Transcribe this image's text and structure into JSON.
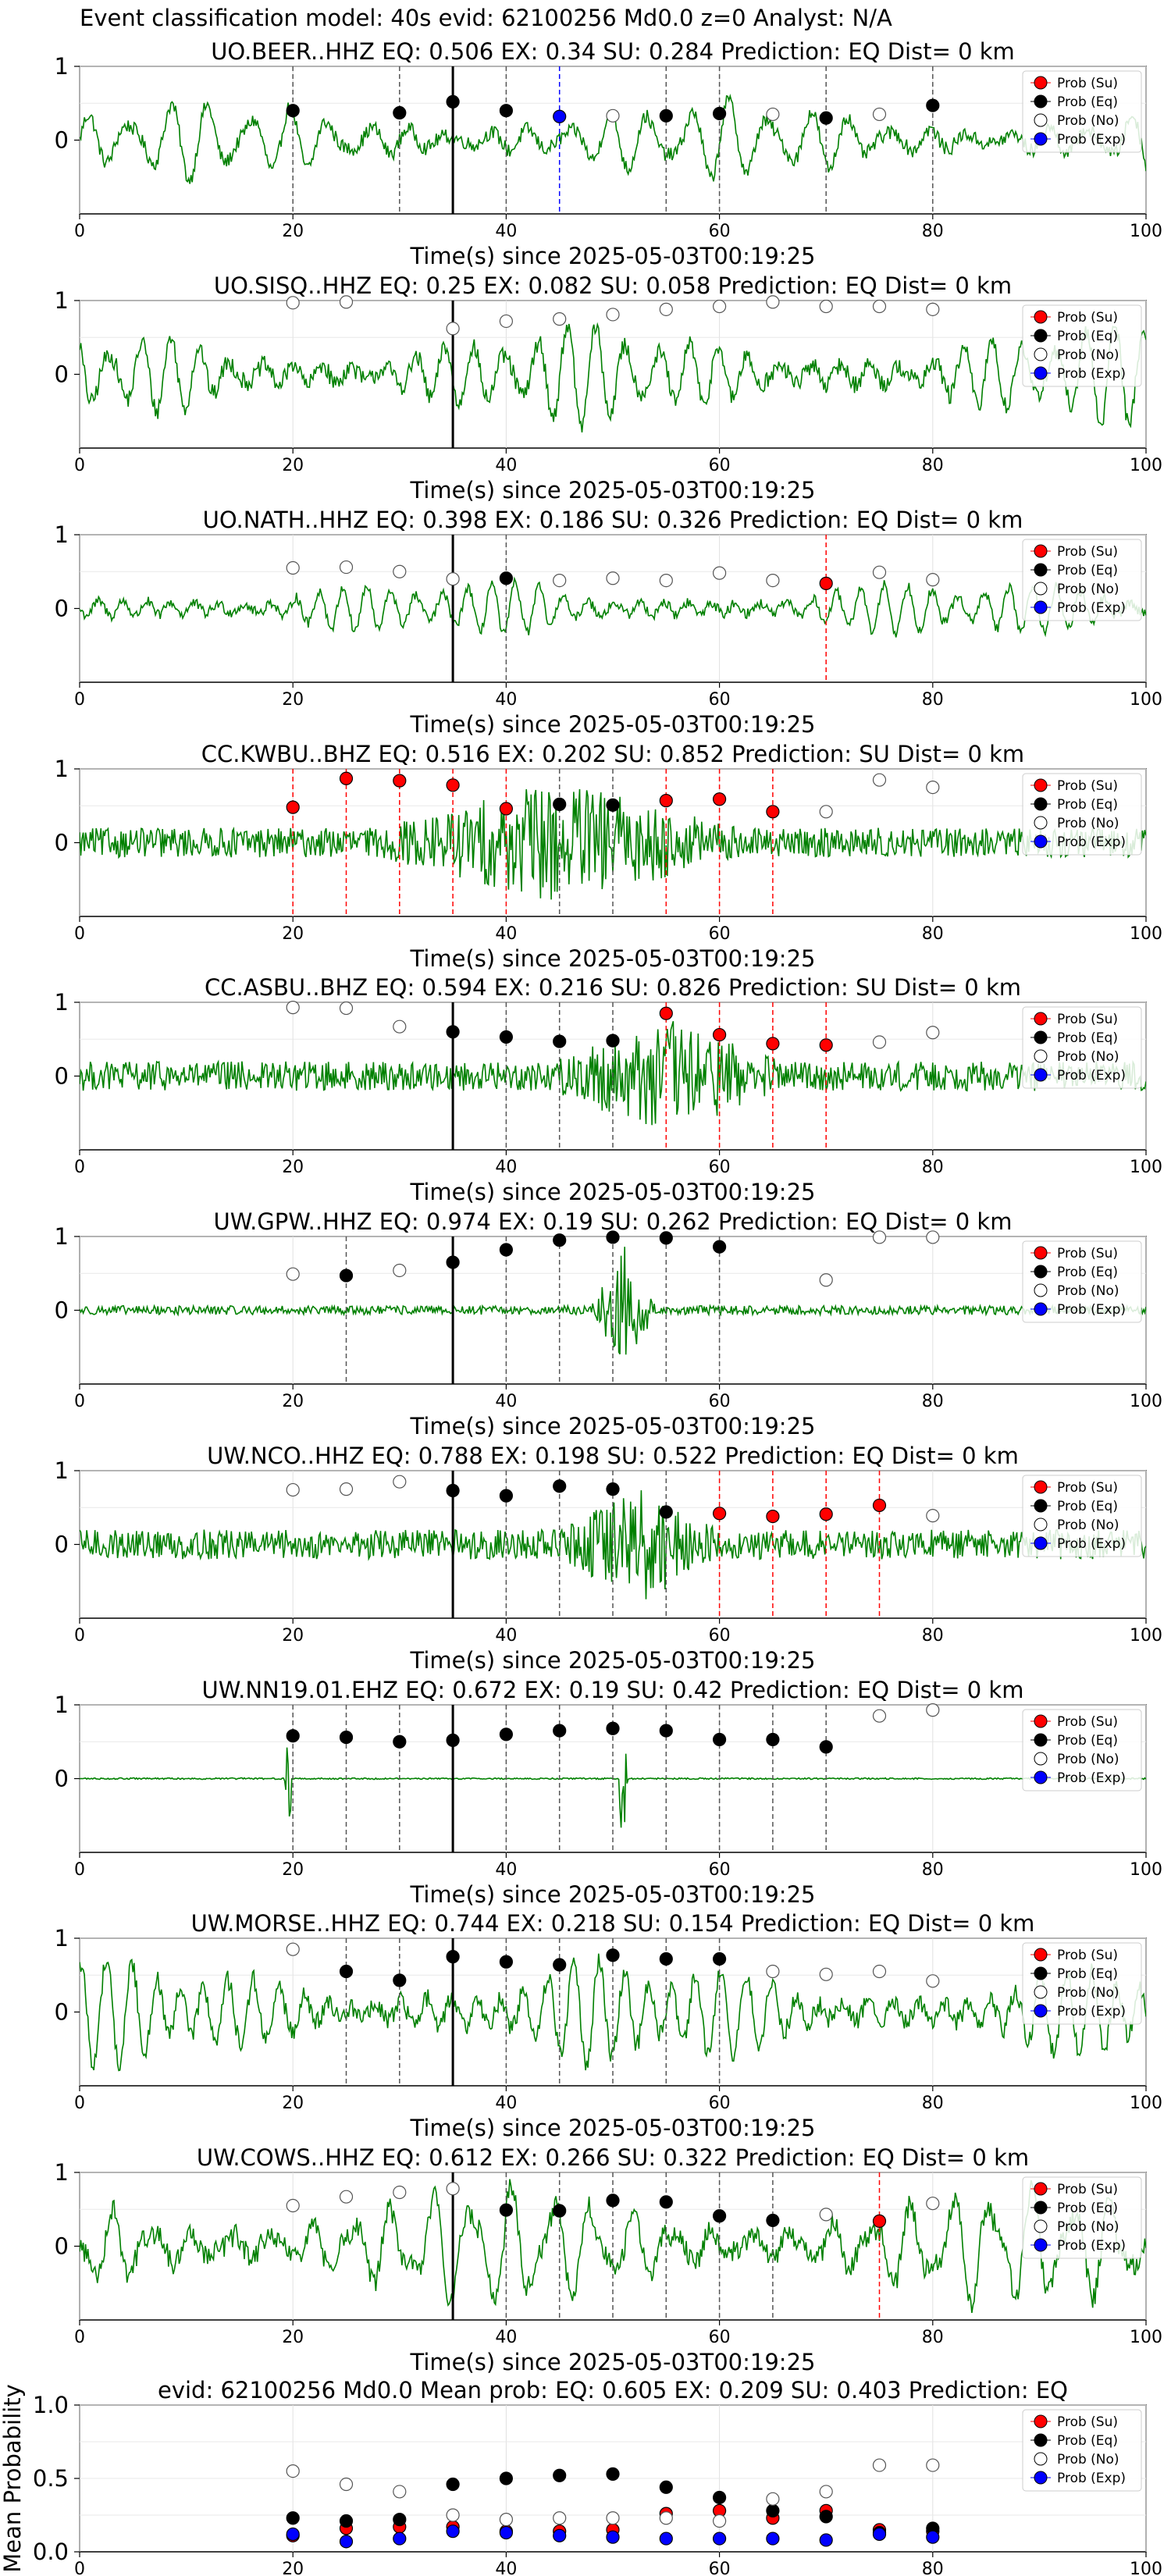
{
  "header": {
    "suptitle": "Event classification model: 40s evid: 62100256 Md0.0 z=0 Analyst: N/A"
  },
  "colors": {
    "waveform": "#008000",
    "su": "#ff0000",
    "eq": "#000000",
    "no": "#ffffff",
    "exp": "#0000ff"
  },
  "legend": {
    "placement": "upper-right",
    "items": [
      "Prob (Su)",
      "Prob (Eq)",
      "Prob (No)",
      "Prob (Exp)"
    ]
  },
  "chart_data": [
    {
      "type": "scatter",
      "title": "UO.BEER..HHZ   EQ: 0.506  EX: 0.34  SU: 0.284   Prediction: EQ    Dist= 0 km",
      "xlabel": "Time(s) since 2025-05-03T00:19:25",
      "ylabel": "",
      "xlim": [
        0,
        100
      ],
      "ylim": [
        -1,
        1
      ],
      "xticks": [
        0,
        20,
        40,
        60,
        80,
        100
      ],
      "yticks": [
        0,
        1
      ],
      "grid": true,
      "legend_placement": "upper-right",
      "onset_line_x": 35,
      "waveform": {
        "style": "smooth",
        "amplitude": 0.55
      },
      "x": [
        20,
        30,
        35,
        40,
        45,
        50,
        55,
        60,
        65,
        70,
        75,
        80
      ],
      "class": [
        "eq",
        "eq",
        "eq",
        "eq",
        "exp",
        "no",
        "eq",
        "eq",
        "no",
        "eq",
        "no",
        "eq"
      ],
      "prob": [
        0.4,
        0.37,
        0.52,
        0.4,
        0.32,
        0.33,
        0.33,
        0.36,
        0.35,
        0.3,
        0.35,
        0.47
      ]
    },
    {
      "type": "scatter",
      "title": "UO.SISQ..HHZ   EQ: 0.25  EX: 0.082  SU: 0.058   Prediction: EQ    Dist= 0 km",
      "xlabel": "Time(s) since 2025-05-03T00:19:25",
      "ylabel": "",
      "xlim": [
        0,
        100
      ],
      "ylim": [
        -1,
        1
      ],
      "xticks": [
        0,
        20,
        40,
        60,
        80,
        100
      ],
      "yticks": [
        0,
        1
      ],
      "grid": true,
      "legend_placement": "upper-right",
      "onset_line_x": 35,
      "waveform": {
        "style": "smooth",
        "amplitude": 0.7
      },
      "x": [
        20,
        25,
        35,
        40,
        45,
        50,
        55,
        60,
        65,
        70,
        75,
        80
      ],
      "class": [
        "no",
        "no",
        "no",
        "no",
        "no",
        "no",
        "no",
        "no",
        "no",
        "no",
        "no",
        "no"
      ],
      "prob": [
        0.97,
        0.98,
        0.62,
        0.72,
        0.75,
        0.81,
        0.88,
        0.92,
        0.98,
        0.92,
        0.92,
        0.88
      ]
    },
    {
      "type": "scatter",
      "title": "UO.NATH..HHZ   EQ: 0.398  EX: 0.186  SU: 0.326   Prediction: EQ    Dist= 0 km",
      "xlabel": "Time(s) since 2025-05-03T00:19:25",
      "ylabel": "",
      "xlim": [
        0,
        100
      ],
      "ylim": [
        -1,
        1
      ],
      "xticks": [
        0,
        20,
        40,
        60,
        80,
        100
      ],
      "yticks": [
        0,
        1
      ],
      "grid": true,
      "legend_placement": "upper-right",
      "onset_line_x": 35,
      "waveform": {
        "style": "smooth",
        "amplitude": 0.4
      },
      "x": [
        20,
        25,
        30,
        35,
        40,
        45,
        50,
        55,
        60,
        65,
        70,
        75,
        80
      ],
      "class": [
        "no",
        "no",
        "no",
        "no",
        "eq",
        "no",
        "no",
        "no",
        "no",
        "no",
        "su",
        "no",
        "no"
      ],
      "prob": [
        0.55,
        0.56,
        0.5,
        0.4,
        0.41,
        0.38,
        0.41,
        0.38,
        0.48,
        0.38,
        0.34,
        0.49,
        0.39
      ]
    },
    {
      "type": "scatter",
      "title": "CC.KWBU..BHZ   EQ: 0.516  EX: 0.202  SU: 0.852   Prediction: SU    Dist= 0 km",
      "xlabel": "Time(s) since 2025-05-03T00:19:25",
      "ylabel": "",
      "xlim": [
        0,
        100
      ],
      "ylim": [
        -1,
        1
      ],
      "xticks": [
        0,
        20,
        40,
        60,
        80,
        100
      ],
      "yticks": [
        0,
        1
      ],
      "grid": true,
      "legend_placement": "upper-right",
      "onset_line_x": null,
      "waveform": {
        "style": "noisy",
        "amplitude": 0.2,
        "burst_start": 28,
        "burst_end": 62,
        "burst_amplitude": 0.85
      },
      "x": [
        20,
        25,
        30,
        35,
        40,
        45,
        50,
        55,
        60,
        65,
        70,
        75,
        80
      ],
      "class": [
        "su",
        "su",
        "su",
        "su",
        "su",
        "eq",
        "eq",
        "su",
        "su",
        "su",
        "no",
        "no",
        "no"
      ],
      "prob": [
        0.48,
        0.87,
        0.84,
        0.78,
        0.46,
        0.52,
        0.51,
        0.57,
        0.59,
        0.42,
        0.42,
        0.85,
        0.75
      ]
    },
    {
      "type": "scatter",
      "title": "CC.ASBU..BHZ   EQ: 0.594  EX: 0.216  SU: 0.826   Prediction: SU    Dist= 0 km",
      "xlabel": "Time(s) since 2025-05-03T00:19:25",
      "ylabel": "",
      "xlim": [
        0,
        100
      ],
      "ylim": [
        -1,
        1
      ],
      "xticks": [
        0,
        20,
        40,
        60,
        80,
        100
      ],
      "yticks": [
        0,
        1
      ],
      "grid": true,
      "legend_placement": "upper-right",
      "onset_line_x": 35,
      "waveform": {
        "style": "noisy",
        "amplitude": 0.2,
        "burst_start": 44,
        "burst_end": 66,
        "burst_amplitude": 0.8
      },
      "x": [
        20,
        25,
        30,
        35,
        40,
        45,
        50,
        55,
        60,
        65,
        70,
        75,
        80
      ],
      "class": [
        "no",
        "no",
        "no",
        "eq",
        "eq",
        "eq",
        "eq",
        "su",
        "su",
        "su",
        "su",
        "no",
        "no"
      ],
      "prob": [
        0.93,
        0.92,
        0.67,
        0.6,
        0.53,
        0.47,
        0.48,
        0.85,
        0.56,
        0.44,
        0.42,
        0.46,
        0.59
      ]
    },
    {
      "type": "scatter",
      "title": "UW.GPW..HHZ   EQ: 0.974  EX: 0.19  SU: 0.262   Prediction: EQ    Dist= 0 km",
      "xlabel": "Time(s) since 2025-05-03T00:19:25",
      "ylabel": "",
      "xlim": [
        0,
        100
      ],
      "ylim": [
        -1,
        1
      ],
      "xticks": [
        0,
        20,
        40,
        60,
        80,
        100
      ],
      "yticks": [
        0,
        1
      ],
      "grid": true,
      "legend_placement": "upper-right",
      "onset_line_x": 35,
      "waveform": {
        "style": "noisy",
        "amplitude": 0.06,
        "burst_start": 48,
        "burst_end": 54,
        "burst_amplitude": 0.9
      },
      "x": [
        20,
        25,
        30,
        35,
        40,
        45,
        50,
        55,
        60,
        70,
        75,
        80
      ],
      "class": [
        "no",
        "eq",
        "no",
        "eq",
        "eq",
        "eq",
        "eq",
        "eq",
        "eq",
        "no",
        "no",
        "no"
      ],
      "prob": [
        0.49,
        0.47,
        0.54,
        0.65,
        0.82,
        0.95,
        0.99,
        0.98,
        0.86,
        0.41,
        0.99,
        0.99
      ]
    },
    {
      "type": "scatter",
      "title": "UW.NCO..HHZ   EQ: 0.788  EX: 0.198  SU: 0.522   Prediction: EQ    Dist= 0 km",
      "xlabel": "Time(s) since 2025-05-03T00:19:25",
      "ylabel": "",
      "xlim": [
        0,
        100
      ],
      "ylim": [
        -1,
        1
      ],
      "xticks": [
        0,
        20,
        40,
        60,
        80,
        100
      ],
      "yticks": [
        0,
        1
      ],
      "grid": true,
      "legend_placement": "upper-right",
      "onset_line_x": 35,
      "waveform": {
        "style": "noisy",
        "amplitude": 0.2,
        "burst_start": 45,
        "burst_end": 60,
        "burst_amplitude": 0.8
      },
      "x": [
        20,
        25,
        30,
        35,
        40,
        45,
        50,
        55,
        60,
        65,
        70,
        75,
        80
      ],
      "class": [
        "no",
        "no",
        "no",
        "eq",
        "eq",
        "eq",
        "eq",
        "eq",
        "su",
        "su",
        "su",
        "su",
        "no"
      ],
      "prob": [
        0.74,
        0.75,
        0.85,
        0.73,
        0.66,
        0.79,
        0.75,
        0.44,
        0.42,
        0.38,
        0.41,
        0.53,
        0.39
      ]
    },
    {
      "type": "scatter",
      "title": "UW.NN19.01.EHZ   EQ: 0.672  EX: 0.19  SU: 0.42   Prediction: EQ    Dist= 0 km",
      "xlabel": "Time(s) since 2025-05-03T00:19:25",
      "ylabel": "",
      "xlim": [
        0,
        100
      ],
      "ylim": [
        -1,
        1
      ],
      "xticks": [
        0,
        20,
        40,
        60,
        80,
        100
      ],
      "yticks": [
        0,
        1
      ],
      "grid": true,
      "legend_placement": "upper-right",
      "onset_line_x": 35,
      "waveform": {
        "style": "flat",
        "amplitude": 0.01,
        "spikes": [
          19.5,
          51
        ]
      },
      "x": [
        20,
        25,
        30,
        35,
        40,
        45,
        50,
        55,
        60,
        65,
        70,
        75,
        80
      ],
      "class": [
        "eq",
        "eq",
        "eq",
        "eq",
        "eq",
        "eq",
        "eq",
        "eq",
        "eq",
        "eq",
        "eq",
        "no",
        "no"
      ],
      "prob": [
        0.58,
        0.56,
        0.5,
        0.52,
        0.6,
        0.65,
        0.68,
        0.65,
        0.53,
        0.53,
        0.43,
        0.85,
        0.93
      ]
    },
    {
      "type": "scatter",
      "title": "UW.MORSE..HHZ   EQ: 0.744  EX: 0.218  SU: 0.154   Prediction: EQ    Dist= 0 km",
      "xlabel": "Time(s) since 2025-05-03T00:19:25",
      "ylabel": "",
      "xlim": [
        0,
        100
      ],
      "ylim": [
        -1,
        1
      ],
      "xticks": [
        0,
        20,
        40,
        60,
        80,
        100
      ],
      "yticks": [
        0,
        1
      ],
      "grid": true,
      "legend_placement": "upper-right",
      "onset_line_x": 35,
      "waveform": {
        "style": "smooth",
        "amplitude": 0.75
      },
      "x": [
        20,
        25,
        30,
        35,
        40,
        45,
        50,
        55,
        60,
        65,
        70,
        75,
        80
      ],
      "class": [
        "no",
        "eq",
        "eq",
        "eq",
        "eq",
        "eq",
        "eq",
        "eq",
        "eq",
        "no",
        "no",
        "no",
        "no"
      ],
      "prob": [
        0.85,
        0.55,
        0.43,
        0.75,
        0.68,
        0.64,
        0.77,
        0.72,
        0.72,
        0.55,
        0.51,
        0.55,
        0.42
      ]
    },
    {
      "type": "scatter",
      "title": "UW.COWS..HHZ   EQ: 0.612  EX: 0.266  SU: 0.322   Prediction: EQ    Dist= 0 km",
      "xlabel": "Time(s) since 2025-05-03T00:19:25",
      "ylabel": "",
      "xlim": [
        0,
        100
      ],
      "ylim": [
        -1,
        1
      ],
      "xticks": [
        0,
        20,
        40,
        60,
        80,
        100
      ],
      "yticks": [
        0,
        1
      ],
      "grid": true,
      "legend_placement": "upper-right",
      "onset_line_x": 35,
      "waveform": {
        "style": "smooth",
        "amplitude": 0.85
      },
      "x": [
        20,
        25,
        30,
        35,
        40,
        45,
        50,
        55,
        60,
        65,
        70,
        75,
        80
      ],
      "class": [
        "no",
        "no",
        "no",
        "no",
        "eq",
        "eq",
        "eq",
        "eq",
        "eq",
        "eq",
        "no",
        "su",
        "no"
      ],
      "prob": [
        0.55,
        0.67,
        0.73,
        0.78,
        0.49,
        0.48,
        0.62,
        0.6,
        0.41,
        0.35,
        0.43,
        0.34,
        0.58
      ]
    },
    {
      "type": "scatter",
      "title": "evid: 62100256  Md0.0   Mean prob:   EQ: 0.605  EX: 0.209  SU: 0.403   Prediction: EQ",
      "xlabel": "",
      "ylabel": "Mean Probability",
      "xlim": [
        0,
        100
      ],
      "ylim": [
        0,
        1
      ],
      "xticks": [
        0,
        20,
        40,
        60,
        80,
        100
      ],
      "yticks": [
        0.0,
        0.5,
        1.0
      ],
      "ytick_labels": [
        "0.0",
        "0.5",
        "1.0"
      ],
      "grid": true,
      "legend_placement": "upper-right",
      "x": [
        20,
        25,
        30,
        35,
        40,
        45,
        50,
        55,
        60,
        65,
        70,
        75,
        80
      ],
      "series": [
        {
          "name": "Prob (Su)",
          "class": "su",
          "values": [
            0.11,
            0.16,
            0.17,
            0.17,
            0.14,
            0.14,
            0.15,
            0.26,
            0.28,
            0.23,
            0.28,
            0.15,
            0.14
          ]
        },
        {
          "name": "Prob (Eq)",
          "class": "eq",
          "values": [
            0.23,
            0.21,
            0.22,
            0.46,
            0.5,
            0.52,
            0.53,
            0.44,
            0.37,
            0.28,
            0.24,
            0.13,
            0.16
          ]
        },
        {
          "name": "Prob (No)",
          "class": "no",
          "values": [
            0.55,
            0.46,
            0.41,
            0.25,
            0.22,
            0.23,
            0.23,
            0.23,
            0.21,
            0.36,
            0.41,
            0.59,
            0.59
          ]
        },
        {
          "name": "Prob (Exp)",
          "class": "exp",
          "values": [
            0.12,
            0.07,
            0.09,
            0.14,
            0.13,
            0.11,
            0.1,
            0.09,
            0.09,
            0.09,
            0.08,
            0.12,
            0.1
          ]
        }
      ]
    }
  ]
}
